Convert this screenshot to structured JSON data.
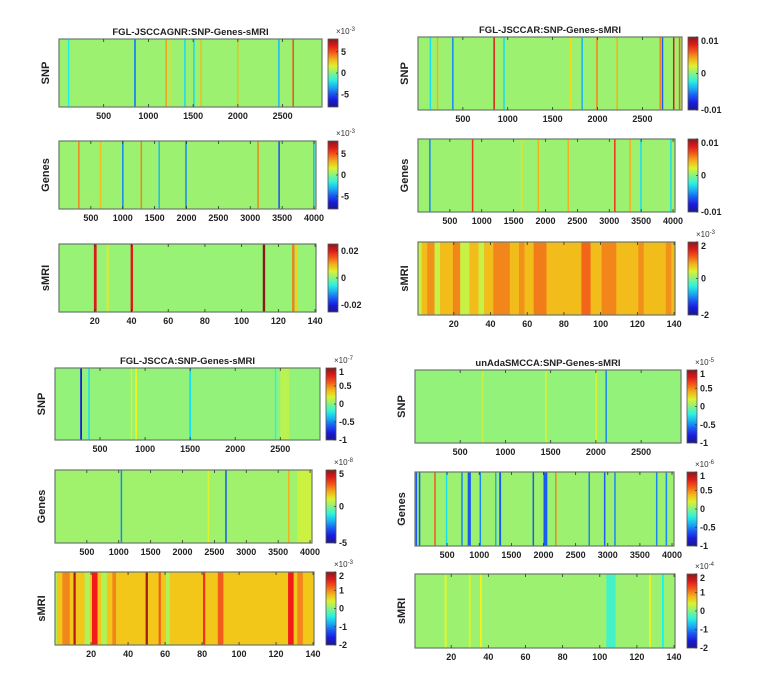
{
  "chart_data": [
    {
      "type": "heatmap",
      "title": "FGL-JSCCAGNR:SNP-Genes-sMRI",
      "panels": [
        {
          "ylabel": "SNP",
          "n": 2940,
          "xticks": [
            500,
            1000,
            1500,
            2000,
            2500
          ],
          "exponent_base": "×10",
          "exponent": "-3",
          "clim": [
            -8,
            8
          ],
          "cbar_ticks": [
            5,
            0,
            -5
          ],
          "baseline": 0.4,
          "stripes": [
            [
              100,
              110,
              -2
            ],
            [
              840,
              860,
              -4
            ],
            [
              1190,
              1200,
              3.5
            ],
            [
              1230,
              1240,
              2.5
            ],
            [
              1400,
              1410,
              -2.5
            ],
            [
              1500,
              1510,
              -2.5
            ],
            [
              1580,
              1595,
              3
            ],
            [
              1990,
              2005,
              3
            ],
            [
              2450,
              2460,
              -3
            ],
            [
              2610,
              2620,
              5
            ]
          ]
        },
        {
          "ylabel": "Genes",
          "n": 4030,
          "xticks": [
            500,
            1000,
            1500,
            2000,
            2500,
            3000,
            3500,
            4000
          ],
          "exponent_base": "×10",
          "exponent": "-3",
          "clim": [
            -8,
            8
          ],
          "cbar_ticks": [
            5,
            0,
            -5
          ],
          "baseline": 0.4,
          "stripes": [
            [
              300,
              315,
              4
            ],
            [
              640,
              655,
              3
            ],
            [
              990,
              1010,
              -4
            ],
            [
              1280,
              1295,
              4
            ],
            [
              1560,
              1580,
              -3
            ],
            [
              1980,
              2000,
              -4
            ],
            [
              3110,
              3125,
              4
            ],
            [
              3440,
              3455,
              -5
            ],
            [
              3985,
              4000,
              -3
            ]
          ]
        },
        {
          "ylabel": "sMRI",
          "n": 140,
          "xticks": [
            20,
            40,
            60,
            80,
            100,
            120,
            140
          ],
          "exponent_base": "",
          "exponent": "",
          "clim": [
            -0.025,
            0.025
          ],
          "cbar_ticks": [
            0.02,
            0,
            -0.02
          ],
          "baseline": 0.001,
          "stripes": [
            [
              19.5,
              21,
              0.02
            ],
            [
              26.5,
              27.5,
              0.007
            ],
            [
              39.5,
              40.8,
              0.02
            ],
            [
              111.5,
              112.8,
              0.025
            ],
            [
              127.5,
              128.8,
              0.013
            ],
            [
              129.5,
              130.5,
              0.008
            ]
          ]
        }
      ]
    },
    {
      "type": "heatmap",
      "title": "FGL-JSCCAR:SNP-Genes-sMRI",
      "panels": [
        {
          "ylabel": "SNP",
          "n": 2940,
          "xticks": [
            500,
            1000,
            1500,
            2000,
            2500
          ],
          "exponent_base": "",
          "exponent": "",
          "clim": [
            -0.01,
            0.01
          ],
          "cbar_ticks": [
            0.01,
            0,
            -0.01
          ],
          "baseline": 0.0005,
          "stripes": [
            [
              130,
              140,
              -0.003
            ],
            [
              210,
              222,
              0.004
            ],
            [
              380,
              395,
              -0.005
            ],
            [
              840,
              855,
              0.008
            ],
            [
              950,
              962,
              -0.003
            ],
            [
              1690,
              1700,
              0.003
            ],
            [
              1820,
              1835,
              -0.004
            ],
            [
              1985,
              2000,
              0.005
            ],
            [
              2210,
              2222,
              0.004
            ],
            [
              2690,
              2700,
              0.005
            ],
            [
              2715,
              2730,
              -0.006
            ],
            [
              2840,
              2850,
              0.008
            ],
            [
              2905,
              2915,
              0.006
            ]
          ]
        },
        {
          "ylabel": "Genes",
          "n": 4030,
          "xticks": [
            500,
            1000,
            1500,
            2000,
            2500,
            3000,
            3500,
            4000
          ],
          "exponent_base": "",
          "exponent": "",
          "clim": [
            -0.01,
            0.01
          ],
          "cbar_ticks": [
            0.01,
            0,
            -0.01
          ],
          "baseline": 0.0005,
          "stripes": [
            [
              175,
              195,
              -0.005
            ],
            [
              845,
              860,
              0.007
            ],
            [
              1615,
              1630,
              0.003
            ],
            [
              1875,
              1890,
              0.004
            ],
            [
              2345,
              2360,
              0.004
            ],
            [
              3075,
              3090,
              0.007
            ],
            [
              3315,
              3330,
              0.004
            ],
            [
              3485,
              3500,
              -0.003
            ],
            [
              3955,
              3970,
              -0.003
            ]
          ]
        },
        {
          "ylabel": "sMRI",
          "n": 140,
          "xticks": [
            20,
            40,
            60,
            80,
            100,
            120,
            140
          ],
          "exponent_base": "×10",
          "exponent": "-3",
          "clim": [
            -2,
            2
          ],
          "cbar_ticks": [
            2,
            0,
            -2
          ],
          "baseline": 0.75,
          "stripes": [
            [
              0.5,
              2.5,
              0.3
            ],
            [
              5.5,
              9.5,
              0.95
            ],
            [
              9.5,
              12.5,
              0.3
            ],
            [
              19.5,
              23.5,
              1.0
            ],
            [
              23.5,
              28.5,
              0.3
            ],
            [
              33.5,
              36.5,
              0.3
            ],
            [
              41.5,
              50.5,
              1.0
            ],
            [
              55.5,
              58.5,
              0.95
            ],
            [
              63.5,
              70.5,
              1.05
            ],
            [
              89.5,
              94.5,
              1.15
            ],
            [
              100.5,
              108.5,
              1.0
            ],
            [
              120.5,
              123.5,
              0.95
            ],
            [
              135.5,
              138.5,
              0.95
            ]
          ]
        }
      ]
    },
    {
      "type": "heatmap",
      "title": "FGL-JSCCA:SNP-Genes-sMRI",
      "panels": [
        {
          "ylabel": "SNP",
          "n": 2940,
          "xticks": [
            500,
            1000,
            1500,
            2000,
            2500
          ],
          "exponent_base": "×10",
          "exponent": "-7",
          "clim": [
            -1,
            1
          ],
          "cbar_ticks": [
            1,
            0.5,
            0,
            -0.5,
            -1
          ],
          "baseline": 0.03,
          "stripes": [
            [
              280,
              300,
              -0.8
            ],
            [
              370,
              385,
              -0.3
            ],
            [
              840,
              855,
              0.2
            ],
            [
              890,
              910,
              0.25
            ],
            [
              1490,
              1510,
              -0.3
            ],
            [
              2440,
              2455,
              -0.2
            ],
            [
              2500,
              2600,
              0.12
            ]
          ]
        },
        {
          "ylabel": "Genes",
          "n": 4030,
          "xticks": [
            500,
            1000,
            1500,
            2000,
            2500,
            3000,
            3500,
            4000
          ],
          "exponent_base": "×10",
          "exponent": "-8",
          "clim": [
            -5,
            5
          ],
          "cbar_ticks": [
            5,
            0,
            -5
          ],
          "baseline": 0.3,
          "stripes": [
            [
              1030,
              1050,
              -2.5
            ],
            [
              2395,
              2410,
              1.0
            ],
            [
              2670,
              2690,
              -3
            ],
            [
              3655,
              3670,
              2.0
            ],
            [
              3800,
              4030,
              0.8
            ]
          ]
        },
        {
          "ylabel": "sMRI",
          "n": 140,
          "xticks": [
            20,
            40,
            60,
            80,
            100,
            120,
            140
          ],
          "exponent_base": "×10",
          "exponent": "-3",
          "clim": [
            -2,
            2
          ],
          "cbar_ticks": [
            2,
            1,
            0,
            -1,
            -2
          ],
          "baseline": 0.7,
          "stripes": [
            [
              0.5,
              1.5,
              0.2
            ],
            [
              4.5,
              8.5,
              1.0
            ],
            [
              10.5,
              11.7,
              1.8
            ],
            [
              16.5,
              19.5,
              0.2
            ],
            [
              20.5,
              23.5,
              1.5
            ],
            [
              25.5,
              28.5,
              0.2
            ],
            [
              31.5,
              33.5,
              1.0
            ],
            [
              49.5,
              50.7,
              1.9
            ],
            [
              56.5,
              57.7,
              1.2
            ],
            [
              60.5,
              62.5,
              0.2
            ],
            [
              80.5,
              81.7,
              1.4
            ],
            [
              88.5,
              91.5,
              1.2
            ],
            [
              126.5,
              129.5,
              1.5
            ],
            [
              131.5,
              134.5,
              1.0
            ]
          ]
        }
      ]
    },
    {
      "type": "heatmap",
      "title": "unAdaSMCCA:SNP-Genes-sMRI",
      "panels": [
        {
          "ylabel": "SNP",
          "n": 2940,
          "xticks": [
            500,
            1000,
            1500,
            2000,
            2500
          ],
          "exponent_base": "×10",
          "exponent": "-5",
          "clim": [
            -1,
            1
          ],
          "cbar_ticks": [
            1,
            0.5,
            0,
            -0.5,
            -1
          ],
          "baseline": 0.03,
          "stripes": [
            [
              740,
              750,
              0.15
            ],
            [
              1440,
              1455,
              0.2
            ],
            [
              1995,
              2005,
              0.2
            ],
            [
              2105,
              2120,
              -0.5
            ]
          ]
        },
        {
          "ylabel": "Genes",
          "n": 4030,
          "xticks": [
            500,
            1000,
            1500,
            2000,
            2500,
            3000,
            3500,
            4000
          ],
          "exponent_base": "×10",
          "exponent": "-6",
          "clim": [
            -1,
            1
          ],
          "cbar_ticks": [
            1,
            0.5,
            0,
            -0.5,
            -1
          ],
          "baseline": 0.05,
          "stripes": [
            [
              10,
              30,
              -0.6
            ],
            [
              60,
              80,
              -0.6
            ],
            [
              300,
              315,
              0.6
            ],
            [
              480,
              495,
              -0.3
            ],
            [
              720,
              735,
              -0.5
            ],
            [
              820,
              870,
              -0.6
            ],
            [
              1005,
              1020,
              -0.5
            ],
            [
              1245,
              1260,
              -0.4
            ],
            [
              1310,
              1340,
              -0.6
            ],
            [
              1830,
              1850,
              -0.6
            ],
            [
              2000,
              2060,
              -0.6
            ],
            [
              2180,
              2195,
              0.5
            ],
            [
              2700,
              2715,
              -0.5
            ],
            [
              2940,
              2960,
              -0.6
            ],
            [
              3100,
              3115,
              -0.5
            ],
            [
              3750,
              3765,
              -0.5
            ],
            [
              3900,
              3915,
              -0.5
            ]
          ]
        },
        {
          "ylabel": "sMRI",
          "n": 140,
          "xticks": [
            20,
            40,
            60,
            80,
            100,
            120,
            140
          ],
          "exponent_base": "×10",
          "exponent": "-4",
          "clim": [
            -2,
            2
          ],
          "cbar_ticks": [
            2,
            1,
            0,
            -1,
            -2
          ],
          "baseline": 0.1,
          "stripes": [
            [
              16.5,
              17.5,
              0.5
            ],
            [
              29.5,
              30.5,
              0.4
            ],
            [
              35.5,
              36.5,
              0.5
            ],
            [
              103.5,
              108.5,
              -0.3
            ],
            [
              126.5,
              127.5,
              0.5
            ],
            [
              133.5,
              134.5,
              -0.5
            ]
          ]
        }
      ]
    }
  ]
}
